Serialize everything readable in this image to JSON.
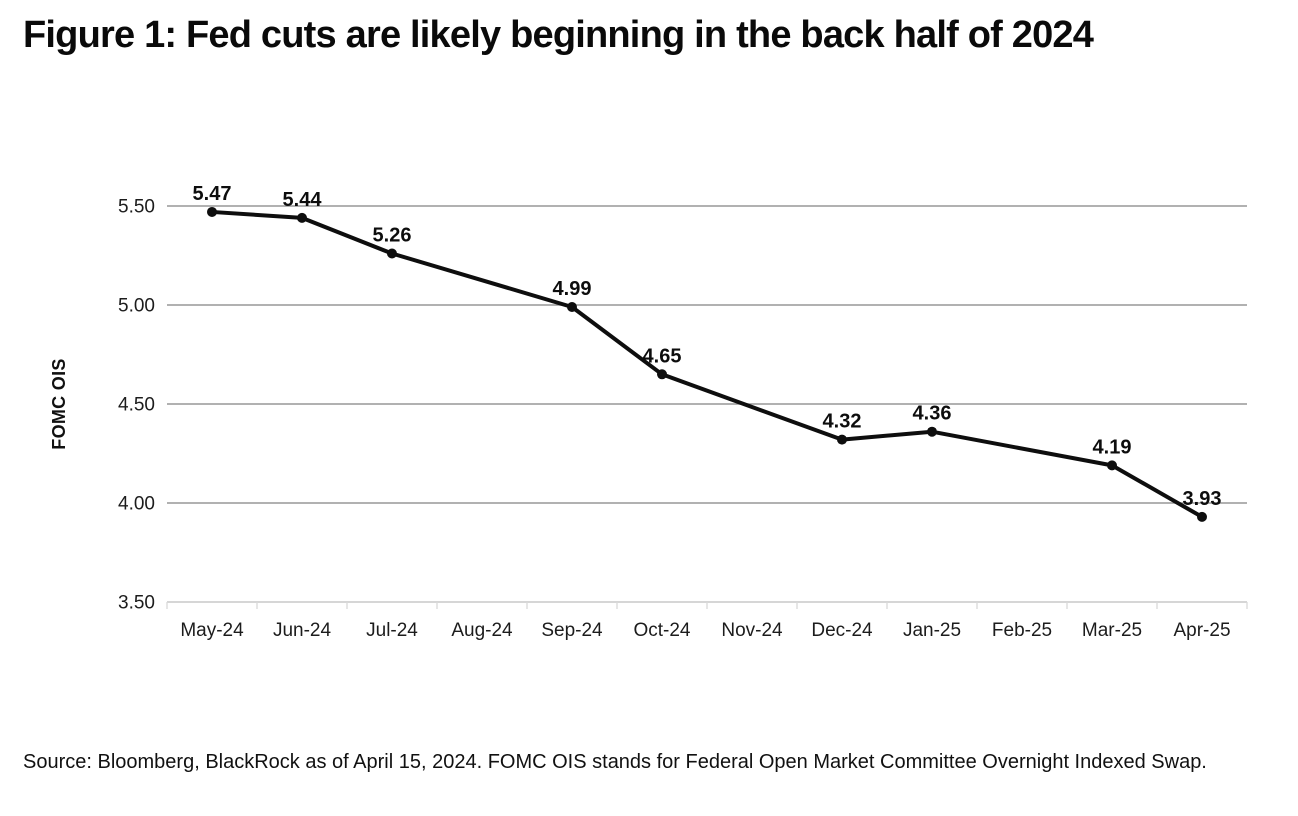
{
  "title": "Figure 1: Fed cuts are likely beginning in the back half of 2024",
  "source_note": "Source: Bloomberg, BlackRock as of April 15, 2024. FOMC OIS stands for Federal Open Market Committee Overnight Indexed Swap.",
  "chart_data": {
    "type": "line",
    "title": "Figure 1: Fed cuts are likely beginning in the back half of 2024",
    "xlabel": "",
    "ylabel": "FOMC OIS",
    "categories": [
      "May-24",
      "Jun-24",
      "Jul-24",
      "Aug-24",
      "Sep-24",
      "Oct-24",
      "Nov-24",
      "Dec-24",
      "Jan-25",
      "Feb-25",
      "Mar-25",
      "Apr-25"
    ],
    "series": [
      {
        "name": "FOMC OIS",
        "values": [
          5.47,
          5.44,
          5.26,
          null,
          4.99,
          4.65,
          null,
          4.32,
          4.36,
          null,
          4.19,
          3.93
        ]
      }
    ],
    "ylim": [
      3.5,
      5.5
    ],
    "yticks": [
      5.5,
      5.0,
      4.5,
      4.0,
      3.5
    ],
    "ytick_labels": [
      "5.50",
      "5.00",
      "4.50",
      "4.00",
      "3.50"
    ],
    "grid": "horizontal",
    "legend": "none",
    "data_labels": true,
    "marker": "circle",
    "colors": {
      "line": "#0e0e0e",
      "grid": "#979797",
      "axis": "#c9c9c9",
      "tick": "#d9d9d9",
      "text": "#1c1c1c"
    }
  }
}
